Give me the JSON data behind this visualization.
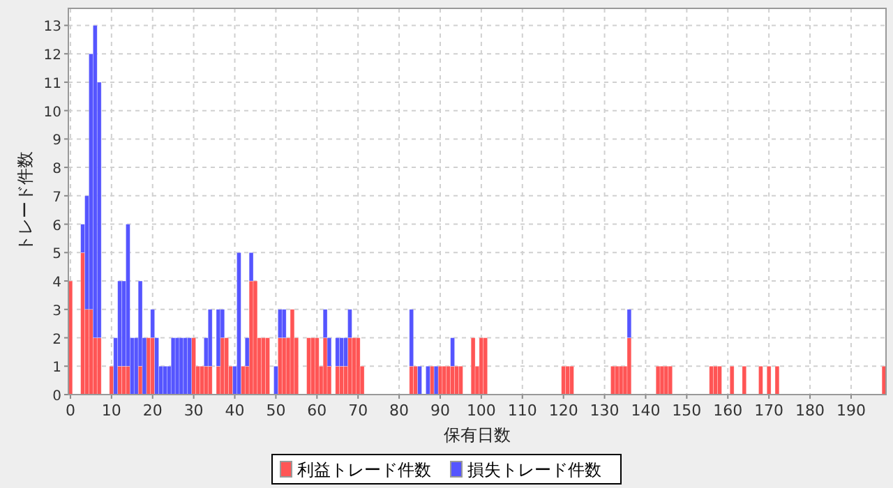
{
  "chart_data": {
    "type": "bar",
    "stacked": true,
    "xlabel": "保有日数",
    "ylabel": "トレード件数",
    "x": [
      0,
      3,
      4,
      5,
      6,
      7,
      10,
      11,
      12,
      13,
      14,
      15,
      16,
      17,
      18,
      19,
      20,
      21,
      22,
      23,
      24,
      25,
      26,
      27,
      28,
      29,
      30,
      31,
      32,
      33,
      34,
      36,
      37,
      38,
      39,
      40,
      41,
      42,
      43,
      44,
      45,
      46,
      47,
      48,
      50,
      51,
      52,
      53,
      54,
      55,
      58,
      59,
      60,
      61,
      62,
      63,
      65,
      66,
      67,
      68,
      69,
      70,
      71,
      83,
      84,
      85,
      87,
      88,
      89,
      90,
      91,
      92,
      93,
      94,
      95,
      98,
      99,
      100,
      101,
      120,
      121,
      122,
      132,
      133,
      134,
      135,
      136,
      143,
      144,
      145,
      146,
      156,
      157,
      158,
      161,
      164,
      168,
      170,
      172,
      198
    ],
    "series": [
      {
        "name": "利益トレード件数",
        "color": "#ff5555",
        "values": [
          4,
          5,
          3,
          3,
          2,
          2,
          1,
          null,
          1,
          1,
          1,
          null,
          null,
          1,
          null,
          2,
          2,
          null,
          null,
          null,
          null,
          null,
          null,
          null,
          null,
          null,
          2,
          1,
          1,
          1,
          1,
          1,
          2,
          2,
          1,
          null,
          null,
          1,
          1,
          4,
          4,
          2,
          2,
          2,
          null,
          2,
          2,
          2,
          3,
          2,
          2,
          2,
          2,
          1,
          2,
          1,
          1,
          1,
          1,
          2,
          2,
          2,
          1,
          1,
          1,
          null,
          null,
          1,
          null,
          1,
          1,
          1,
          1,
          1,
          1,
          2,
          1,
          2,
          2,
          1,
          1,
          1,
          1,
          1,
          1,
          1,
          2,
          1,
          1,
          1,
          1,
          1,
          1,
          1,
          1,
          1,
          1,
          1,
          1,
          1
        ]
      },
      {
        "name": "損失トレード件数",
        "color": "#5555ff",
        "values": [
          null,
          1,
          4,
          9,
          11,
          9,
          null,
          2,
          3,
          3,
          5,
          2,
          2,
          3,
          2,
          null,
          1,
          2,
          1,
          1,
          1,
          2,
          2,
          2,
          2,
          2,
          null,
          null,
          null,
          1,
          2,
          2,
          1,
          null,
          null,
          1,
          5,
          null,
          1,
          1,
          null,
          null,
          null,
          null,
          1,
          1,
          1,
          null,
          null,
          null,
          null,
          null,
          null,
          null,
          1,
          1,
          1,
          1,
          1,
          1,
          null,
          null,
          null,
          2,
          null,
          1,
          1,
          null,
          1,
          null,
          null,
          null,
          1,
          null,
          null,
          null,
          null,
          null,
          null,
          null,
          null,
          null,
          null,
          null,
          null,
          null,
          1,
          null,
          null,
          null,
          null,
          null,
          null,
          null,
          null,
          null,
          null,
          null,
          null,
          null
        ]
      }
    ],
    "xlim": [
      -0.5,
      198.5
    ],
    "xticks": [
      0,
      10,
      20,
      30,
      40,
      50,
      60,
      70,
      80,
      90,
      100,
      110,
      120,
      130,
      140,
      150,
      160,
      170,
      180,
      190
    ],
    "ylim": [
      0,
      13.6
    ],
    "yticks": [
      0,
      1,
      2,
      3,
      4,
      5,
      6,
      7,
      8,
      9,
      10,
      11,
      12,
      13
    ],
    "grid": true,
    "legend": "bottom"
  }
}
